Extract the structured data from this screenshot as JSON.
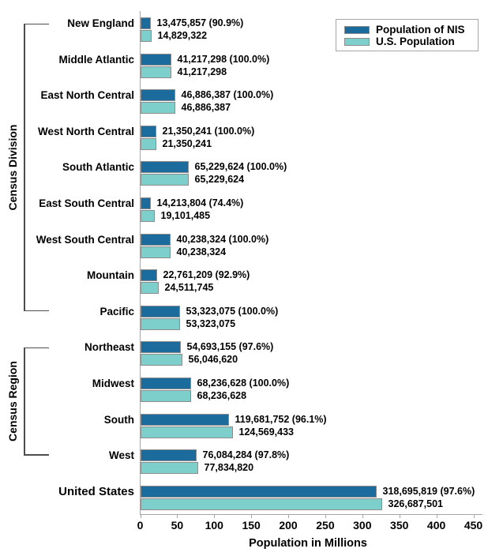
{
  "chart_data": {
    "type": "bar",
    "orientation": "horizontal",
    "xlabel": "Population in Millions",
    "xlim": [
      0,
      450
    ],
    "x_ticks": [
      0,
      50,
      100,
      150,
      200,
      250,
      300,
      350,
      400,
      450
    ],
    "grid": false,
    "legend_position": "top-right",
    "series": [
      {
        "name": "Population of NIS"
      },
      {
        "name": "U.S. Population"
      }
    ],
    "rows": [
      {
        "category": "New England",
        "nis": 13475857,
        "nis_label": "13,475,857 (90.9%)",
        "us": 14829322,
        "us_label": "14,829,322"
      },
      {
        "category": "Middle Atlantic",
        "nis": 41217298,
        "nis_label": "41,217,298 (100.0%)",
        "us": 41217298,
        "us_label": "41,217,298"
      },
      {
        "category": "East North Central",
        "nis": 46886387,
        "nis_label": "46,886,387 (100.0%)",
        "us": 46886387,
        "us_label": "46,886,387"
      },
      {
        "category": "West North Central",
        "nis": 21350241,
        "nis_label": "21,350,241 (100.0%)",
        "us": 21350241,
        "us_label": "21,350,241"
      },
      {
        "category": "South Atlantic",
        "nis": 65229624,
        "nis_label": "65,229,624 (100.0%)",
        "us": 65229624,
        "us_label": "65,229,624"
      },
      {
        "category": "East South Central",
        "nis": 14213804,
        "nis_label": "14,213,804 (74.4%)",
        "us": 19101485,
        "us_label": "19,101,485"
      },
      {
        "category": "West South Central",
        "nis": 40238324,
        "nis_label": "40,238,324 (100.0%)",
        "us": 40238324,
        "us_label": "40,238,324"
      },
      {
        "category": "Mountain",
        "nis": 22761209,
        "nis_label": "22,761,209 (92.9%)",
        "us": 24511745,
        "us_label": "24,511,745"
      },
      {
        "category": "Pacific",
        "nis": 53323075,
        "nis_label": "53,323,075 (100.0%)",
        "us": 53323075,
        "us_label": "53,323,075"
      },
      {
        "category": "Northeast",
        "nis": 54693155,
        "nis_label": "54,693,155 (97.6%)",
        "us": 56046620,
        "us_label": "56,046,620"
      },
      {
        "category": "Midwest",
        "nis": 68236628,
        "nis_label": "68,236,628 (100.0%)",
        "us": 68236628,
        "us_label": "68,236,628"
      },
      {
        "category": "South",
        "nis": 119681752,
        "nis_label": "119,681,752 (96.1%)",
        "us": 124569433,
        "us_label": "124,569,433"
      },
      {
        "category": "West",
        "nis": 76084284,
        "nis_label": "76,084,284 (97.8%)",
        "us": 77834820,
        "us_label": "77,834,820"
      },
      {
        "category": "United States",
        "nis": 318695819,
        "nis_label": "318,695,819 (97.6%)",
        "us": 326687501,
        "us_label": "326,687,501"
      }
    ],
    "group_brackets": [
      {
        "label": "Census Division",
        "from_index": 0,
        "to_index": 8
      },
      {
        "label": "Census Region",
        "from_index": 9,
        "to_index": 12
      }
    ]
  },
  "colors": {
    "nis_bar": "#1C6B9D",
    "us_bar": "#7CCFCA",
    "bar_border": "#8C8C8C",
    "axis": "#A6A6A6",
    "bracket": "#4D4D4D",
    "text": "#000000",
    "background": "#FFFFFF"
  }
}
